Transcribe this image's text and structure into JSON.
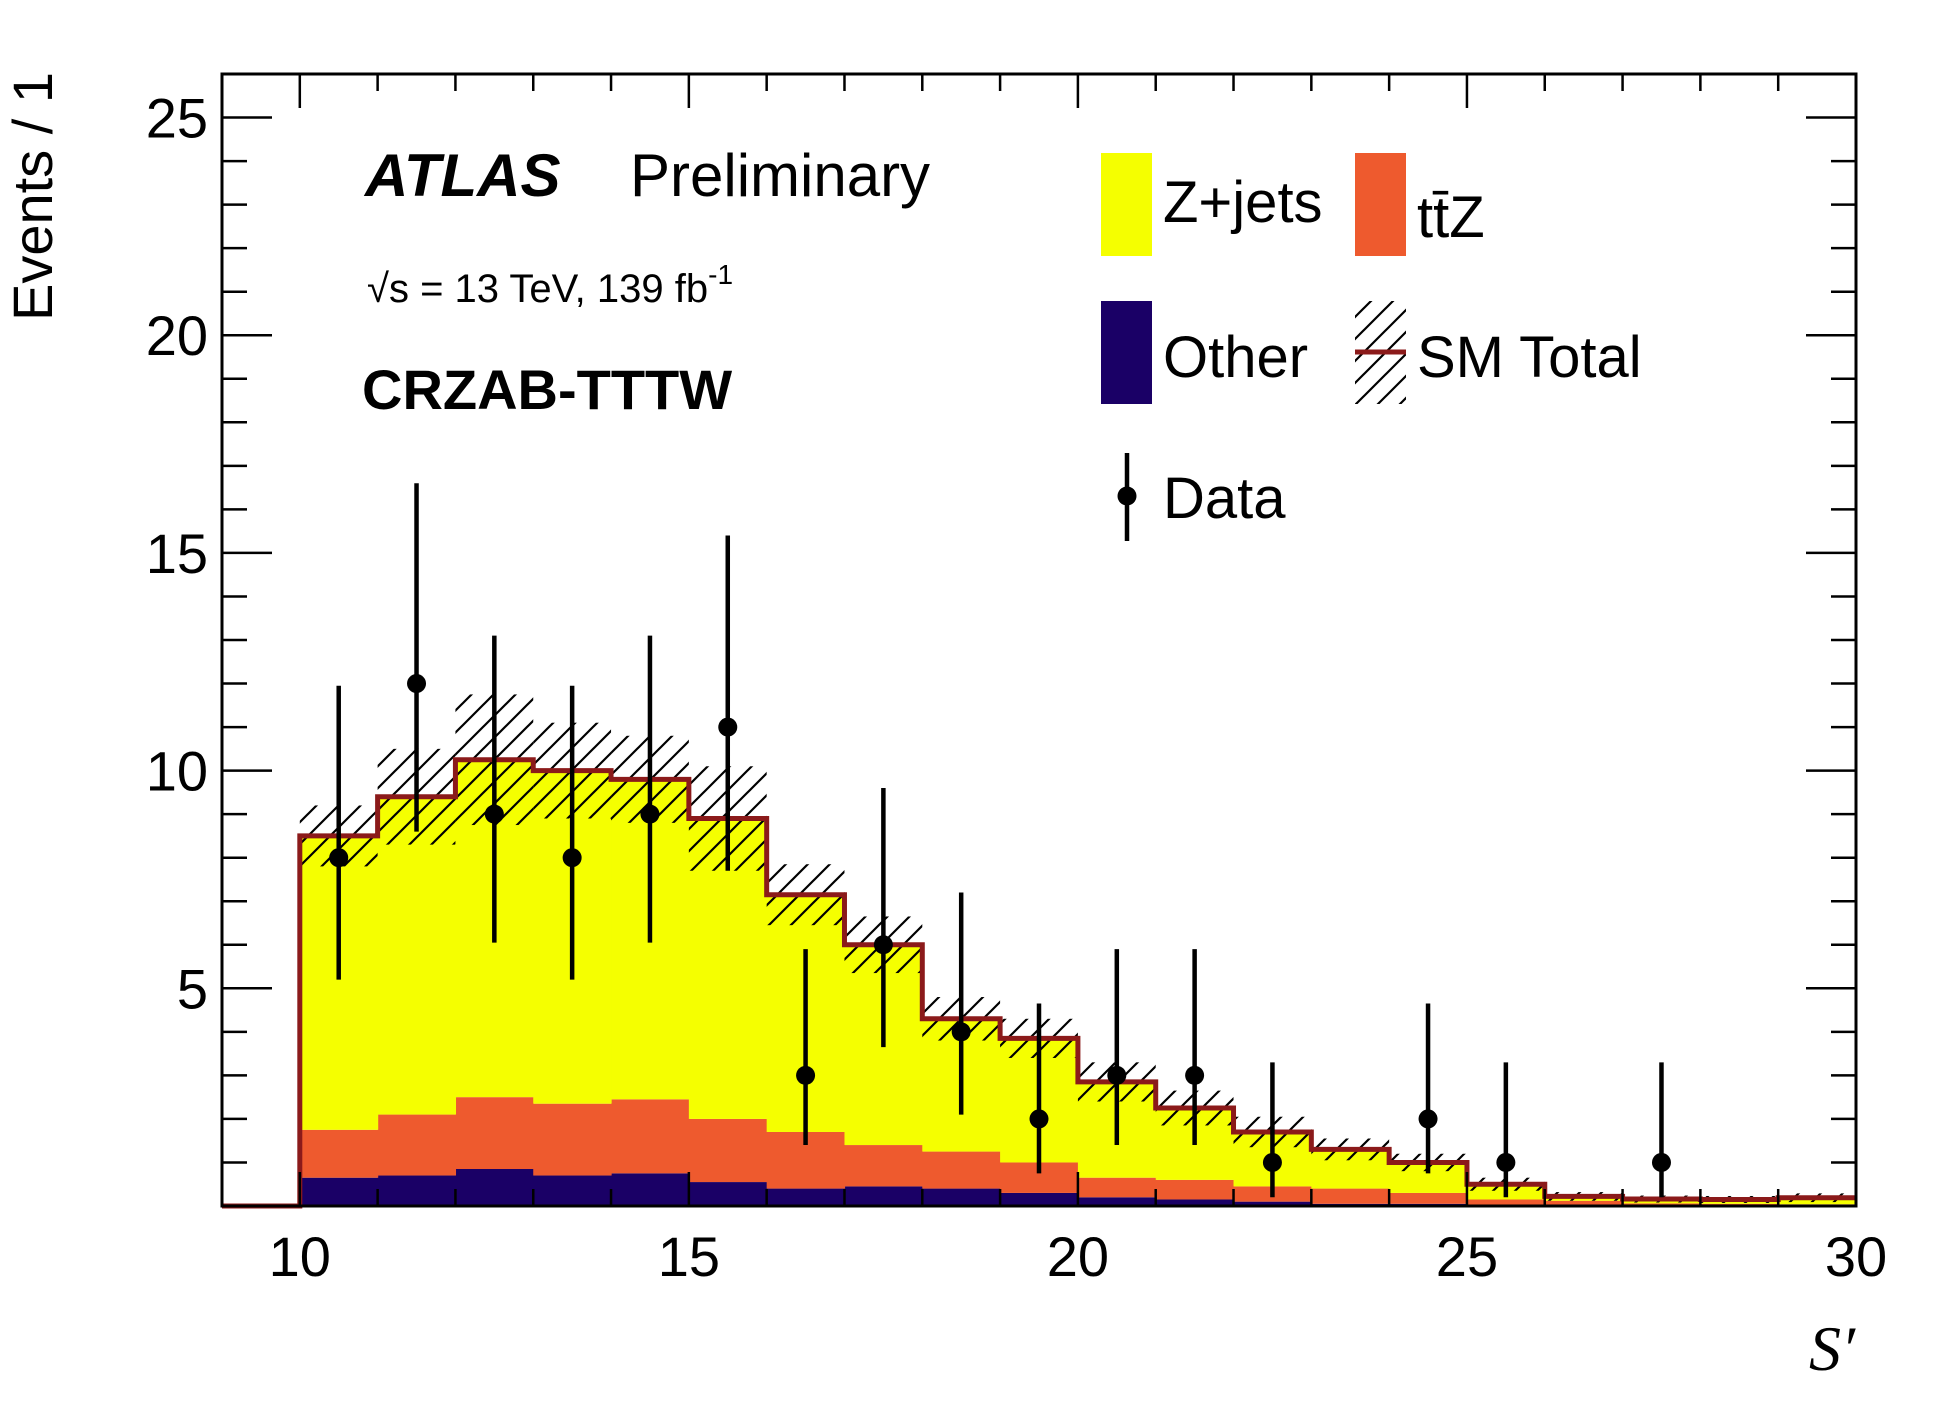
{
  "chart_data": {
    "type": "histogram",
    "title": "",
    "xlabel": "S′",
    "ylabel": "Events / 1",
    "xlim": [
      9,
      30
    ],
    "ylim": [
      0,
      26
    ],
    "xticks": [
      10,
      15,
      20,
      25,
      30
    ],
    "yticks": [
      5,
      10,
      15,
      20,
      25
    ],
    "bin_edges": [
      9,
      10,
      11,
      12,
      13,
      14,
      15,
      16,
      17,
      18,
      19,
      20,
      21,
      22,
      23,
      24,
      25,
      26,
      27,
      28,
      29,
      30
    ],
    "stack_order": [
      "Other",
      "tt̄Z",
      "Z+jets"
    ],
    "series": [
      {
        "name": "Other",
        "color": "#1a0066",
        "values": [
          0,
          0.65,
          0.7,
          0.85,
          0.7,
          0.75,
          0.55,
          0.4,
          0.45,
          0.4,
          0.3,
          0.2,
          0.15,
          0.1,
          0.05,
          0.05,
          0.03,
          0.02,
          0.01,
          0.01,
          0.01
        ]
      },
      {
        "name": "tt̄Z",
        "color": "#ee5a2e",
        "values": [
          0,
          1.1,
          1.4,
          1.65,
          1.65,
          1.7,
          1.45,
          1.3,
          0.95,
          0.85,
          0.7,
          0.45,
          0.45,
          0.35,
          0.35,
          0.25,
          0.12,
          0.1,
          0.05,
          0.04,
          0.03
        ]
      },
      {
        "name": "Z+jets",
        "color": "#f5ff00",
        "values": [
          0,
          6.75,
          7.3,
          7.75,
          7.65,
          7.35,
          6.9,
          5.45,
          4.6,
          3.05,
          2.85,
          2.2,
          1.65,
          1.25,
          0.9,
          0.7,
          0.35,
          0.1,
          0.1,
          0.1,
          0.15
        ]
      }
    ],
    "sm_total": [
      0,
      8.5,
      9.4,
      10.25,
      10.0,
      9.8,
      8.9,
      7.15,
      6.0,
      4.3,
      3.85,
      2.85,
      2.25,
      1.7,
      1.3,
      1.0,
      0.5,
      0.22,
      0.16,
      0.15,
      0.19
    ],
    "sm_total_unc": [
      0,
      0.7,
      1.1,
      1.5,
      1.1,
      1.0,
      1.2,
      0.7,
      0.65,
      0.5,
      0.45,
      0.45,
      0.4,
      0.35,
      0.25,
      0.2,
      0.15,
      0.1,
      0.08,
      0.08,
      0.1
    ],
    "data": {
      "name": "Data",
      "x": [
        10.5,
        11.5,
        12.5,
        13.5,
        14.5,
        15.5,
        16.5,
        17.5,
        18.5,
        19.5,
        20.5,
        21.5,
        22.5,
        24.5,
        25.5,
        27.5
      ],
      "y": [
        8,
        12,
        9,
        8,
        9,
        11,
        3,
        6,
        4,
        2,
        3,
        3,
        1,
        2,
        1,
        1
      ],
      "err_up": [
        3.95,
        4.6,
        4.1,
        3.95,
        4.1,
        4.4,
        2.9,
        3.6,
        3.2,
        2.65,
        2.9,
        2.9,
        2.3,
        2.65,
        2.3,
        2.3
      ],
      "err_down": [
        2.8,
        3.4,
        2.95,
        2.8,
        2.95,
        3.3,
        1.6,
        2.35,
        1.9,
        1.25,
        1.6,
        1.6,
        0.8,
        1.25,
        0.8,
        0.8
      ]
    },
    "legend": {
      "placement": "top-right",
      "entries": [
        {
          "label": "Z+jets",
          "kind": "fill",
          "color": "#f5ff00"
        },
        {
          "label": "tt̄Z",
          "kind": "fill",
          "color": "#ee5a2e"
        },
        {
          "label": "Other",
          "kind": "fill",
          "color": "#1a0066"
        },
        {
          "label": "SM Total",
          "kind": "line-hatch",
          "color": "#8b1a1a"
        },
        {
          "label": "Data",
          "kind": "marker",
          "color": "#000000"
        }
      ]
    },
    "annotations": {
      "experiment": "ATLAS",
      "status": "Preliminary",
      "energy_lumi": "√s = 13 TeV, 139 fb",
      "lumi_exponent": "-1",
      "region": "CRZAB-TTTW"
    },
    "grid": false
  }
}
